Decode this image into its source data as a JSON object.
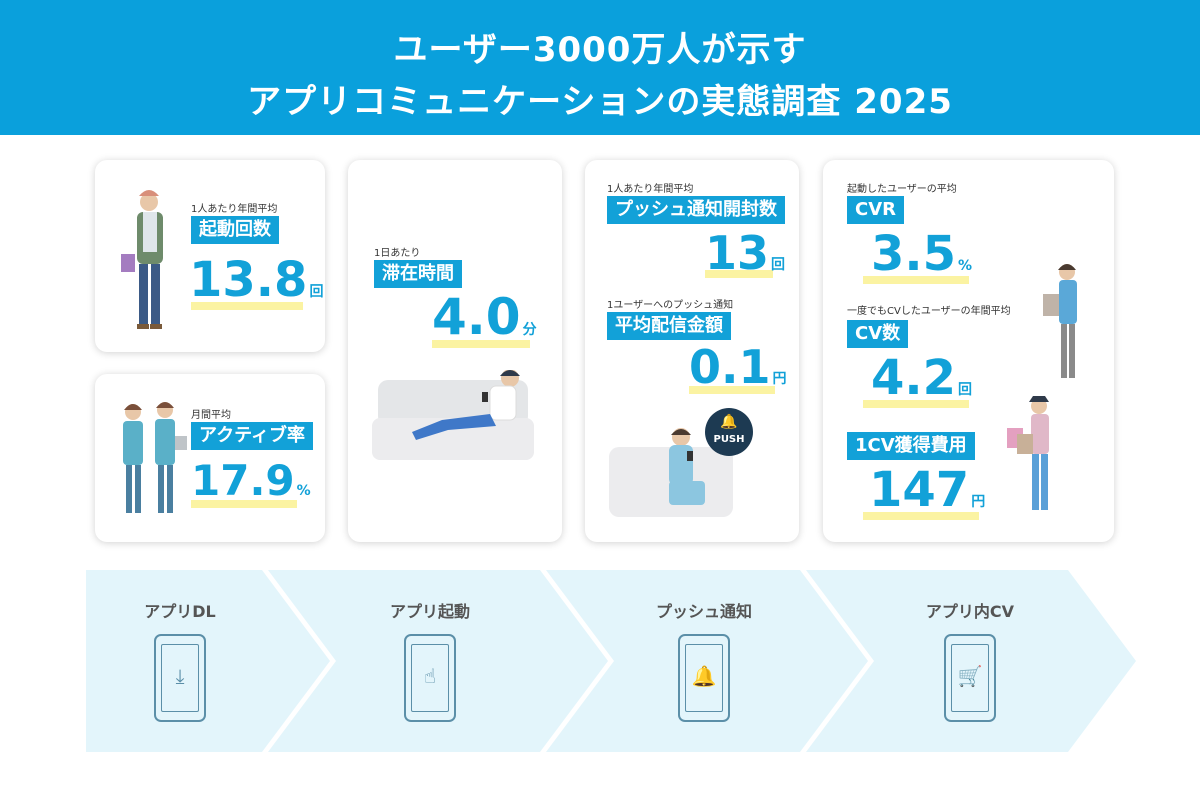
{
  "header": {
    "line1": "ユーザー3000万人が示す",
    "line2": "アプリコミュニケーションの実態調査 2025"
  },
  "colors": {
    "accent": "#12a1d8",
    "highlight": "#fbf3a2",
    "flow_bg": "#e3f5fb"
  },
  "cards": {
    "launch": {
      "caption": "1人あたり年間平均",
      "label": "起動回数",
      "value": "13.8",
      "unit": "回"
    },
    "active": {
      "caption": "月間平均",
      "label": "アクティブ率",
      "value": "17.9",
      "unit": "%"
    },
    "stay": {
      "caption": "1日あたり",
      "label": "滞在時間",
      "value": "4.0",
      "unit": "分"
    },
    "push_open": {
      "caption": "1人あたり年間平均",
      "label": "プッシュ通知開封数",
      "value": "13",
      "unit": "回"
    },
    "push_cost": {
      "caption": "1ユーザーへのプッシュ通知",
      "label": "平均配信金額",
      "value": "0.1",
      "unit": "円"
    },
    "push_badge": "PUSH",
    "cvr": {
      "caption": "起動したユーザーの平均",
      "label": "CVR",
      "value": "3.5",
      "unit": "%"
    },
    "cv_count": {
      "caption": "一度でもCVしたユーザーの年間平均",
      "label": "CV数",
      "value": "4.2",
      "unit": "回"
    },
    "cpa": {
      "label": "1CV獲得費用",
      "value": "147",
      "unit": "円"
    }
  },
  "flow": [
    {
      "label": "アプリDL",
      "icon": "download-icon"
    },
    {
      "label": "アプリ起動",
      "icon": "tap-icon"
    },
    {
      "label": "プッシュ通知",
      "icon": "bell-icon"
    },
    {
      "label": "アプリ内CV",
      "icon": "cart-icon"
    }
  ]
}
